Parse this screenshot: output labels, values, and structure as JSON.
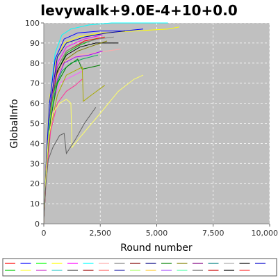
{
  "chart_data": {
    "type": "line",
    "title": "levywalk+9.0E-4+10+0.0",
    "xlabel": "Round number",
    "ylabel": "GlobalInfo",
    "xlim": [
      0,
      10000
    ],
    "ylim": [
      0,
      100
    ],
    "x_ticks": [
      "0",
      "2,500",
      "5,000",
      "7,500",
      "10,000"
    ],
    "y_ticks": [
      "0",
      "10",
      "20",
      "30",
      "40",
      "50",
      "60",
      "70",
      "80",
      "90",
      "100"
    ],
    "grid": true,
    "legend_position": "bottom",
    "plot_background": "#c0c0c0",
    "series": [
      {
        "color": "#00ffff",
        "x": [
          0,
          100,
          250,
          500,
          800,
          1200,
          2000,
          3000,
          4500,
          5500
        ],
        "y": [
          0,
          30,
          60,
          85,
          94,
          97,
          99,
          100,
          100,
          100
        ]
      },
      {
        "color": "#ffff00",
        "x": [
          0,
          100,
          250,
          500,
          900,
          1500,
          2500,
          4000,
          5500,
          6000
        ],
        "y": [
          0,
          30,
          62,
          80,
          90,
          93,
          95,
          96,
          97,
          98
        ]
      },
      {
        "color": "#0000ff",
        "x": [
          0,
          100,
          250,
          500,
          900,
          1500,
          2500,
          3500,
          4400
        ],
        "y": [
          0,
          30,
          60,
          82,
          92,
          95,
          96,
          96,
          97
        ]
      },
      {
        "color": "#0000aa",
        "x": [
          0,
          100,
          300,
          600,
          1000,
          1800,
          2800,
          3600
        ],
        "y": [
          0,
          28,
          60,
          83,
          90,
          93,
          95,
          96
        ]
      },
      {
        "color": "#ff00ff",
        "x": [
          0,
          100,
          300,
          600,
          1000,
          1800,
          2600
        ],
        "y": [
          0,
          27,
          58,
          80,
          88,
          92,
          94
        ]
      },
      {
        "color": "#ff0000",
        "x": [
          0,
          100,
          300,
          600,
          1000,
          1800,
          2700
        ],
        "y": [
          0,
          28,
          57,
          78,
          86,
          91,
          93
        ]
      },
      {
        "color": "#00c000",
        "x": [
          0,
          100,
          300,
          600,
          1000,
          1600,
          2300
        ],
        "y": [
          0,
          26,
          55,
          76,
          85,
          89,
          92
        ]
      },
      {
        "color": "#808080",
        "x": [
          0,
          100,
          300,
          600,
          1000,
          1700,
          2400,
          3100
        ],
        "y": [
          0,
          28,
          58,
          78,
          86,
          90,
          92,
          93
        ]
      },
      {
        "color": "#000000",
        "x": [
          0,
          100,
          300,
          600,
          1000,
          1600,
          2300,
          3300
        ],
        "y": [
          0,
          25,
          55,
          76,
          84,
          88,
          90,
          90
        ]
      },
      {
        "color": "#808000",
        "x": [
          0,
          100,
          300,
          600,
          1000,
          1500,
          2000,
          2800
        ],
        "y": [
          0,
          26,
          56,
          75,
          82,
          86,
          88,
          91
        ]
      },
      {
        "color": "#ffaaaa",
        "x": [
          0,
          100,
          300,
          600,
          900,
          1500,
          2200,
          3400
        ],
        "y": [
          0,
          25,
          54,
          74,
          81,
          84,
          85,
          87
        ]
      },
      {
        "color": "#aa00ff",
        "x": [
          0,
          100,
          300,
          600,
          900,
          1400,
          2000,
          2600
        ],
        "y": [
          0,
          24,
          53,
          72,
          80,
          83,
          84,
          86
        ]
      },
      {
        "color": "#00aa55",
        "x": [
          0,
          100,
          300,
          500,
          800,
          1200,
          1700,
          2400
        ],
        "y": [
          0,
          22,
          50,
          68,
          76,
          80,
          82,
          84
        ]
      },
      {
        "color": "#55ff55",
        "x": [
          0,
          100,
          250,
          450,
          700,
          1000
        ],
        "y": [
          0,
          25,
          50,
          65,
          72,
          78
        ]
      },
      {
        "color": "#ff55ff",
        "x": [
          0,
          100,
          250,
          450,
          700,
          1000,
          1700
        ],
        "y": [
          0,
          22,
          45,
          62,
          70,
          72,
          76
        ]
      },
      {
        "color": "#008000",
        "x": [
          0,
          100,
          300,
          600,
          1000,
          1500,
          1700,
          2500
        ],
        "y": [
          0,
          24,
          52,
          70,
          78,
          82,
          77,
          79
        ]
      },
      {
        "color": "#aaaa00",
        "x": [
          0,
          100,
          300,
          600,
          1000,
          1700,
          1750,
          2100,
          2700
        ],
        "y": [
          0,
          22,
          48,
          64,
          74,
          78,
          61,
          64,
          69
        ]
      },
      {
        "color": "#ff3399",
        "x": [
          0,
          100,
          300,
          600,
          1000,
          1400,
          1700
        ],
        "y": [
          0,
          22,
          46,
          60,
          66,
          69,
          72
        ]
      },
      {
        "color": "#ffff66",
        "x": [
          0,
          80,
          200,
          400,
          700,
          1000,
          1200,
          1250,
          1600,
          2500,
          3300,
          4000,
          4400
        ],
        "y": [
          0,
          20,
          42,
          55,
          60,
          62,
          60,
          38,
          43,
          55,
          66,
          72,
          74
        ]
      },
      {
        "color": "#606060",
        "x": [
          0,
          80,
          200,
          400,
          700,
          900,
          1000,
          1400,
          1800,
          2300
        ],
        "y": [
          0,
          18,
          32,
          38,
          44,
          45,
          35,
          42,
          50,
          58
        ]
      }
    ],
    "legend_swatches": [
      "#ff0000",
      "#0000ff",
      "#00ff00",
      "#ffff00",
      "#ff00ff",
      "#00ffff",
      "#ffaaaa",
      "#808080",
      "#800000",
      "#000080",
      "#008000",
      "#808000",
      "#800080",
      "#008080",
      "#aaaaaa",
      "#000000",
      "#0000cc",
      "#00cc00",
      "#ffff33",
      "#cc33cc",
      "#33cccc",
      "#444444",
      "#990000",
      "#ff6666",
      "#2222aa",
      "#aaff66",
      "#ffcc33",
      "#aa55ff",
      "#55ffaa",
      "#666666",
      "#cc0000",
      "#000000",
      "#ff3333"
    ]
  }
}
